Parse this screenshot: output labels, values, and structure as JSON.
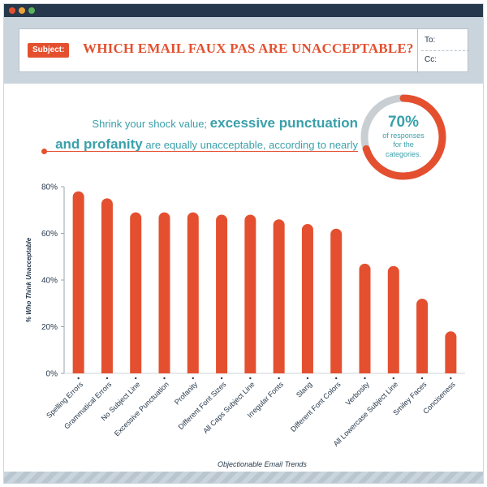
{
  "window": {
    "controls": [
      {
        "name": "close-dot",
        "color": "#e4502f"
      },
      {
        "name": "minimize-dot",
        "color": "#f0a23a"
      },
      {
        "name": "maximize-dot",
        "color": "#5ab25a"
      }
    ]
  },
  "email": {
    "subject_label": "Subject:",
    "subject": "WHICH EMAIL FAUX PAS ARE UNACCEPTABLE?",
    "to_label": "To:",
    "cc_label": "Cc:"
  },
  "intro": {
    "lead": "Shrink your shock value; ",
    "bold1": "excessive punctuation",
    "bold2": "and profanity",
    "tail": " are equally unacceptable, according to nearly"
  },
  "callout": {
    "percent": "70%",
    "caption": "of responses for the categories.",
    "value": 0.7
  },
  "colors": {
    "accent": "#e4502f",
    "teal": "#3aa0aa",
    "navy": "#26384b",
    "ring_track": "#c9ced3"
  },
  "chart_data": {
    "type": "bar",
    "categories": [
      "Spelling Errors",
      "Grammatical Errors",
      "No Subject Line",
      "Excessive Punctuation",
      "Profanity",
      "Different Font Sizes",
      "All Caps Subject Line",
      "Irregular Fonts",
      "Slang",
      "Different Font Colors",
      "Verbosity",
      "All Lowercase Subject Line",
      "Smiley Faces",
      "Conciseness"
    ],
    "values": [
      78,
      75,
      69,
      69,
      69,
      68,
      68,
      66,
      64,
      62,
      47,
      46,
      32,
      18
    ],
    "xlabel": "Objectionable Email Trends",
    "ylabel": "% Who Think Unacceptable",
    "ylim": [
      0,
      80
    ],
    "yticks": [
      "0%",
      "20%",
      "40%",
      "60%",
      "80%"
    ],
    "grid": false,
    "legend": "none"
  }
}
